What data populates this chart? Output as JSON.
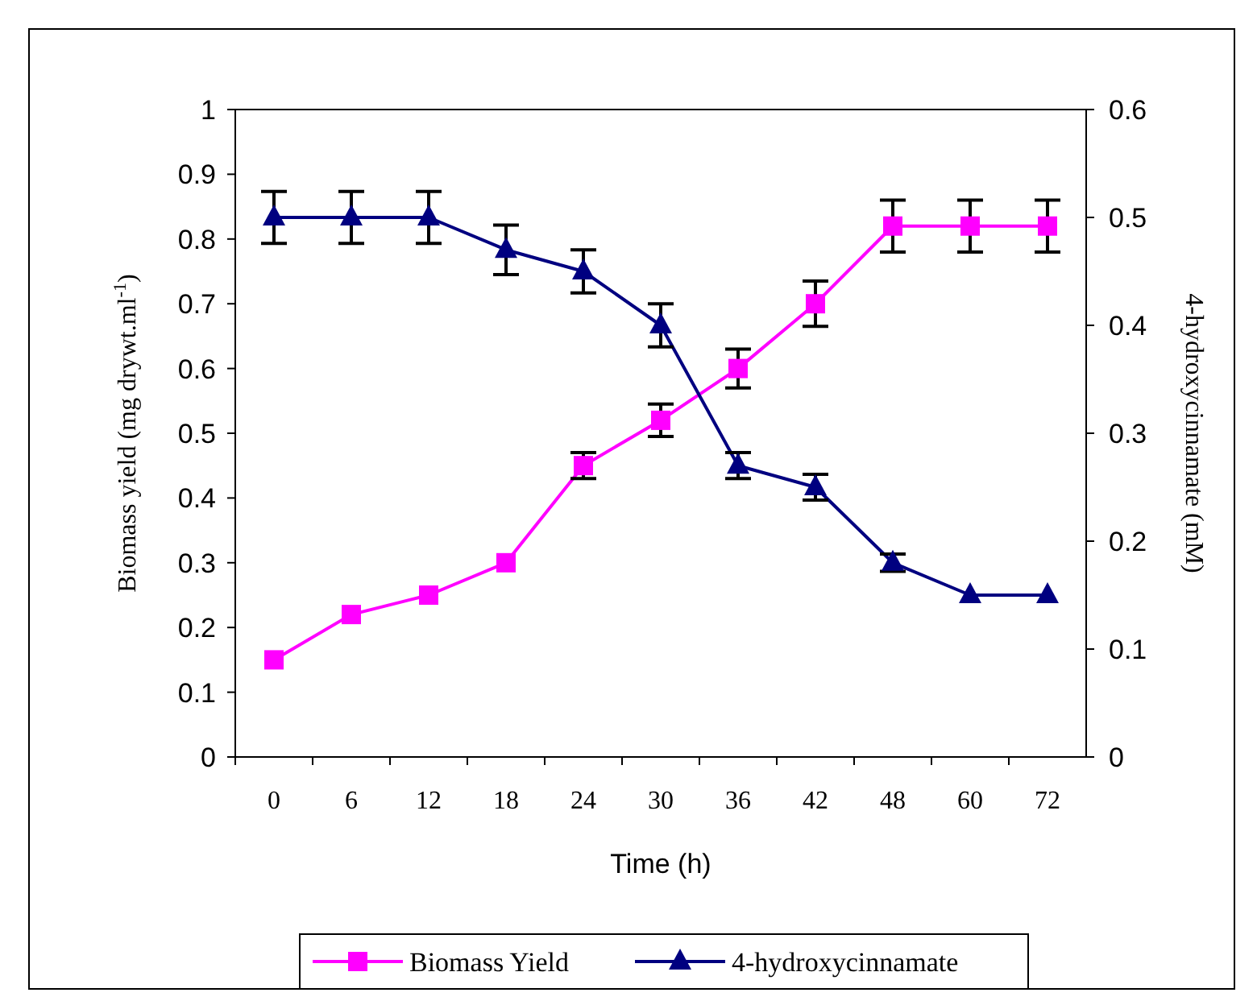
{
  "chart_data": {
    "type": "line",
    "xlabel": "Time (h)",
    "ylabel": "Biomass yield (mg drywt.ml$^{-1}$)",
    "y2label": "4-hydroxycinnamate  (mM)",
    "categories": [
      "0",
      "6",
      "12",
      "18",
      "24",
      "30",
      "36",
      "42",
      "48",
      "60",
      "72"
    ],
    "series": [
      {
        "name": "Biomass Yield",
        "color": "#ff00ff",
        "marker": "square",
        "values": [
          0.15,
          0.22,
          0.25,
          0.3,
          0.45,
          0.52,
          0.6,
          0.7,
          0.82,
          0.82,
          0.82
        ],
        "errors": [
          null,
          null,
          null,
          null,
          0.02,
          0.025,
          0.03,
          0.035,
          0.04,
          0.04,
          0.04
        ]
      },
      {
        "name": "4-hydroxycinnamate",
        "color": "#000080",
        "marker": "triangle",
        "axis": "y2",
        "values": [
          0.5,
          0.5,
          0.5,
          0.47,
          0.45,
          0.4,
          0.27,
          0.25,
          0.18,
          0.15,
          0.15
        ],
        "errors": [
          0.024,
          0.024,
          0.024,
          0.023,
          0.02,
          0.02,
          0.012,
          0.012,
          0.008,
          null,
          null
        ]
      }
    ],
    "ylim": [
      0,
      1
    ],
    "yticks": [
      0,
      {
        "value": 0.1,
        "label": "0.1"
      },
      {
        "value": 0.2,
        "label": "0.2"
      },
      {
        "value": 0.3,
        "label": "0.3"
      },
      {
        "value": 0.4,
        "label": "0.4"
      },
      {
        "value": 0.5,
        "label": "0.5"
      },
      {
        "value": 0.6,
        "label": "0.6"
      },
      {
        "value": 0.7,
        "label": "0.7"
      },
      {
        "value": 0.8,
        "label": "0.8"
      },
      {
        "value": 0.9,
        "label": "0.9"
      },
      1
    ],
    "y2lim": [
      0,
      0.6
    ],
    "y2ticks": [
      0,
      {
        "value": 0.1,
        "label": "0.1"
      },
      {
        "value": 0.2,
        "label": "0.2"
      },
      {
        "value": 0.3,
        "label": "0.3"
      },
      {
        "value": 0.4,
        "label": "0.4"
      },
      {
        "value": 0.5,
        "label": "0.5"
      },
      {
        "value": 0.6,
        "label": "0.6"
      }
    ],
    "grid": false,
    "legend": "bottom",
    "line_style": "solid"
  }
}
